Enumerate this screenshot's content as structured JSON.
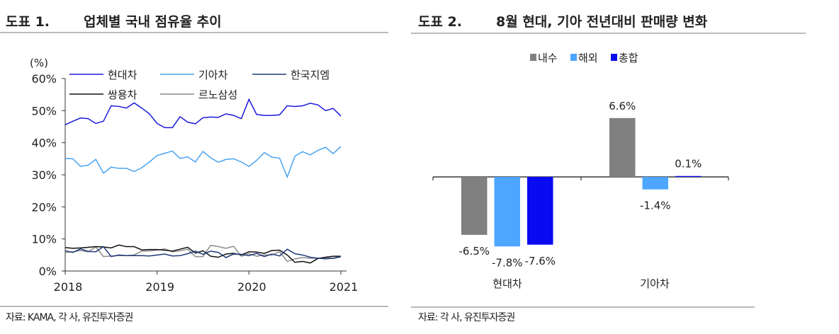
{
  "left": {
    "figure_no": "도표 1.",
    "title": "업체별 국내 점유율 추이",
    "source": "자료: KAMA, 각 사, 유진투자증권"
  },
  "right": {
    "figure_no": "도표 2.",
    "title": "8월 현대, 기아 전년대비 판매량 변화",
    "source": "자료: 각 사, 유진투자증권"
  },
  "chart_data": [
    {
      "type": "line",
      "ylabel": "(%)",
      "ylim": [
        0,
        60
      ],
      "yticks": [
        "0%",
        "10%",
        "20%",
        "30%",
        "40%",
        "50%",
        "60%"
      ],
      "xticks": [
        "2018",
        "2019",
        "2020",
        "2021"
      ],
      "x_start": "2018-01",
      "x_step": "month",
      "legend_placement": "top",
      "series": [
        {
          "name": "현대차",
          "color": "#1a1adc",
          "values": [
            45.6,
            46.7,
            47.7,
            47.5,
            46.0,
            46.7,
            51.5,
            51.3,
            50.8,
            52.4,
            50.8,
            49.0,
            46.0,
            44.7,
            44.7,
            48.1,
            46.4,
            45.9,
            47.8,
            48.0,
            47.9,
            49.0,
            48.5,
            47.5,
            53.5,
            48.8,
            48.5,
            48.5,
            48.7,
            51.5,
            51.3,
            51.5,
            52.3,
            51.8,
            50.0,
            50.7,
            48.3
          ]
        },
        {
          "name": "기아차",
          "color": "#4aa3f0",
          "values": [
            35.1,
            35.0,
            32.6,
            33.0,
            34.8,
            30.5,
            32.4,
            32.0,
            32.0,
            31.0,
            32.2,
            34.0,
            36.0,
            36.7,
            37.4,
            35.1,
            35.6,
            34.0,
            37.3,
            35.3,
            33.9,
            34.8,
            35.0,
            34.0,
            32.6,
            34.5,
            36.9,
            35.5,
            35.2,
            29.3,
            35.8,
            37.2,
            36.2,
            37.6,
            38.6,
            36.6,
            38.8
          ]
        },
        {
          "name": "한국지엠",
          "color": "#1f3a7a",
          "values": [
            6.3,
            5.8,
            6.9,
            6.1,
            6.0,
            7.6,
            4.5,
            5.0,
            4.8,
            4.8,
            4.8,
            4.7,
            5.0,
            5.3,
            4.7,
            4.8,
            5.4,
            6.2,
            5.2,
            6.2,
            5.8,
            4.2,
            5.3,
            5.2,
            4.8,
            5.5,
            4.5,
            5.3,
            4.7,
            6.8,
            5.4,
            5.0,
            4.3,
            4.0,
            3.8,
            4.0,
            4.5
          ]
        },
        {
          "name": "쌍용차",
          "color": "#111111",
          "values": [
            7.3,
            7.1,
            7.2,
            7.4,
            7.6,
            7.5,
            7.2,
            8.1,
            7.6,
            7.6,
            6.6,
            6.7,
            6.7,
            6.5,
            6.2,
            6.8,
            7.4,
            5.6,
            6.3,
            4.6,
            4.3,
            5.3,
            5.5,
            5.0,
            6.0,
            5.9,
            5.5,
            6.4,
            6.5,
            5.0,
            2.7,
            3.0,
            2.5,
            3.9,
            4.3,
            4.6,
            4.6
          ]
        },
        {
          "name": "르노삼성",
          "color": "#8c8c8c",
          "values": [
            5.8,
            6.0,
            6.4,
            6.0,
            7.5,
            4.5,
            4.7,
            4.8,
            4.8,
            5.0,
            6.2,
            6.3,
            6.5,
            6.9,
            6.0,
            6.3,
            6.8,
            4.5,
            4.5,
            8.0,
            7.6,
            7.1,
            7.7,
            4.6,
            5.4,
            4.6,
            5.0,
            5.0,
            6.0,
            3.0,
            3.8,
            4.2,
            4.0,
            4.0,
            4.2,
            3.9,
            4.4
          ]
        }
      ]
    },
    {
      "type": "bar",
      "categories": [
        "현대차",
        "기아차"
      ],
      "legend_placement": "top",
      "series": [
        {
          "name": "내수",
          "color": "#808080",
          "values": [
            -6.5,
            6.6
          ],
          "labels": [
            "-6.5%",
            "6.6%"
          ]
        },
        {
          "name": "해외",
          "color": "#4da6ff",
          "values": [
            -7.8,
            -1.4
          ],
          "labels": [
            "-7.8%",
            "-1.4%"
          ]
        },
        {
          "name": "총합",
          "color": "#0a0af0",
          "values": [
            -7.6,
            0.1
          ],
          "labels": [
            "-7.6%",
            "0.1%"
          ]
        }
      ]
    }
  ]
}
